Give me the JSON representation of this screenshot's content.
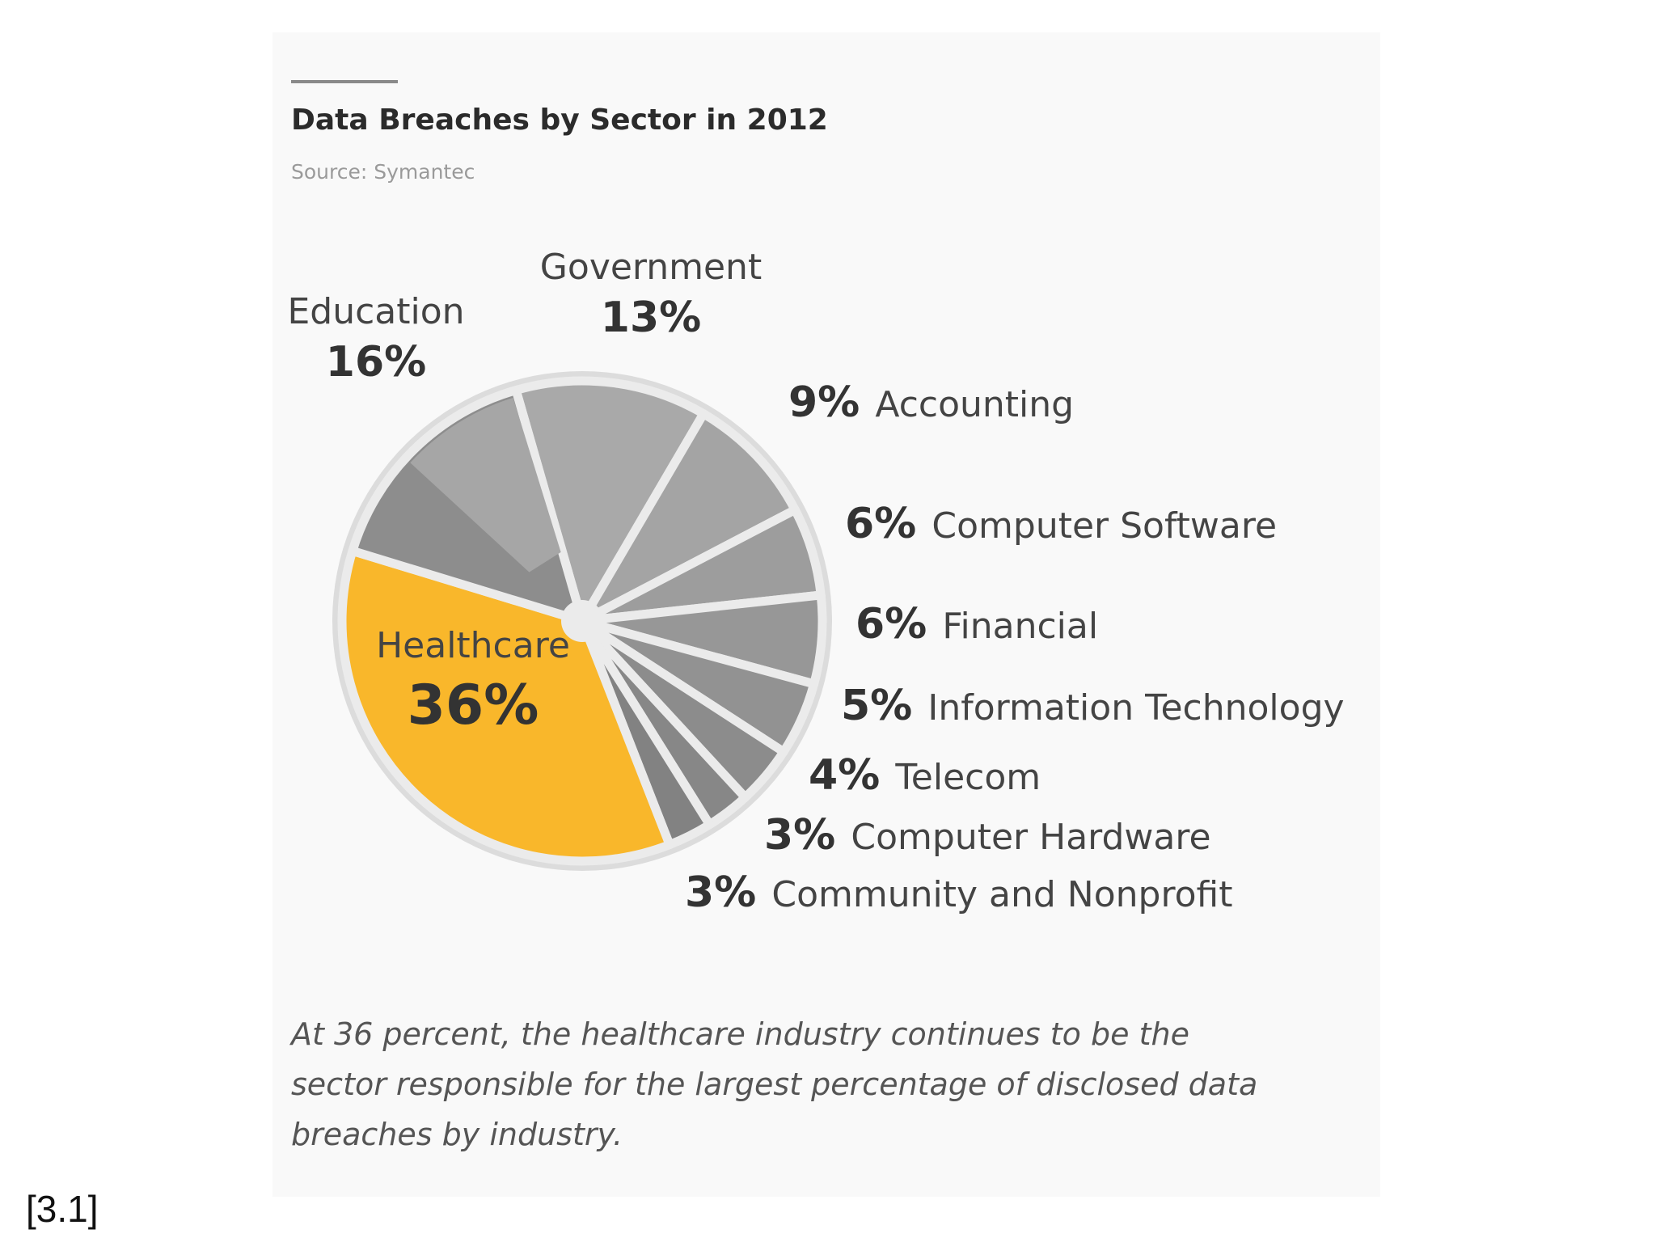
{
  "chart_data": {
    "type": "pie",
    "title": "Data Breaches by Sector in 2012",
    "source": "Source: Symantec",
    "slices": [
      {
        "name": "Government",
        "value": 13,
        "label": "13%",
        "color": "#a9a9a9"
      },
      {
        "name": "Accounting",
        "value": 9,
        "label": "9%",
        "color": "#a4a4a4"
      },
      {
        "name": "Computer Software",
        "value": 6,
        "label": "6%",
        "color": "#9d9d9d"
      },
      {
        "name": "Financial",
        "value": 6,
        "label": "6%",
        "color": "#979797"
      },
      {
        "name": "Information Technology",
        "value": 5,
        "label": "5%",
        "color": "#929292"
      },
      {
        "name": "Telecom",
        "value": 4,
        "label": "4%",
        "color": "#8c8c8c"
      },
      {
        "name": "Computer Hardware",
        "value": 3,
        "label": "3%",
        "color": "#878787"
      },
      {
        "name": "Community and Nonprofit",
        "value": 3,
        "label": "3%",
        "color": "#828282"
      },
      {
        "name": "Healthcare",
        "value": 36,
        "label": "36%",
        "color": "#f9b72b"
      },
      {
        "name": "Education",
        "value": 16,
        "label": "16%",
        "color": "#8d8d8d",
        "inner_color": "#a6a6a6"
      }
    ]
  },
  "caption": "At 36 percent, the healthcare industry continues to be the sector responsible for the largest percentage of disclosed data breaches by industry.",
  "reference": "[3.1]",
  "colors": {
    "separator": "#ebebeb",
    "outer_ring": "#dcdcdc",
    "accent": "#f9b72b"
  }
}
